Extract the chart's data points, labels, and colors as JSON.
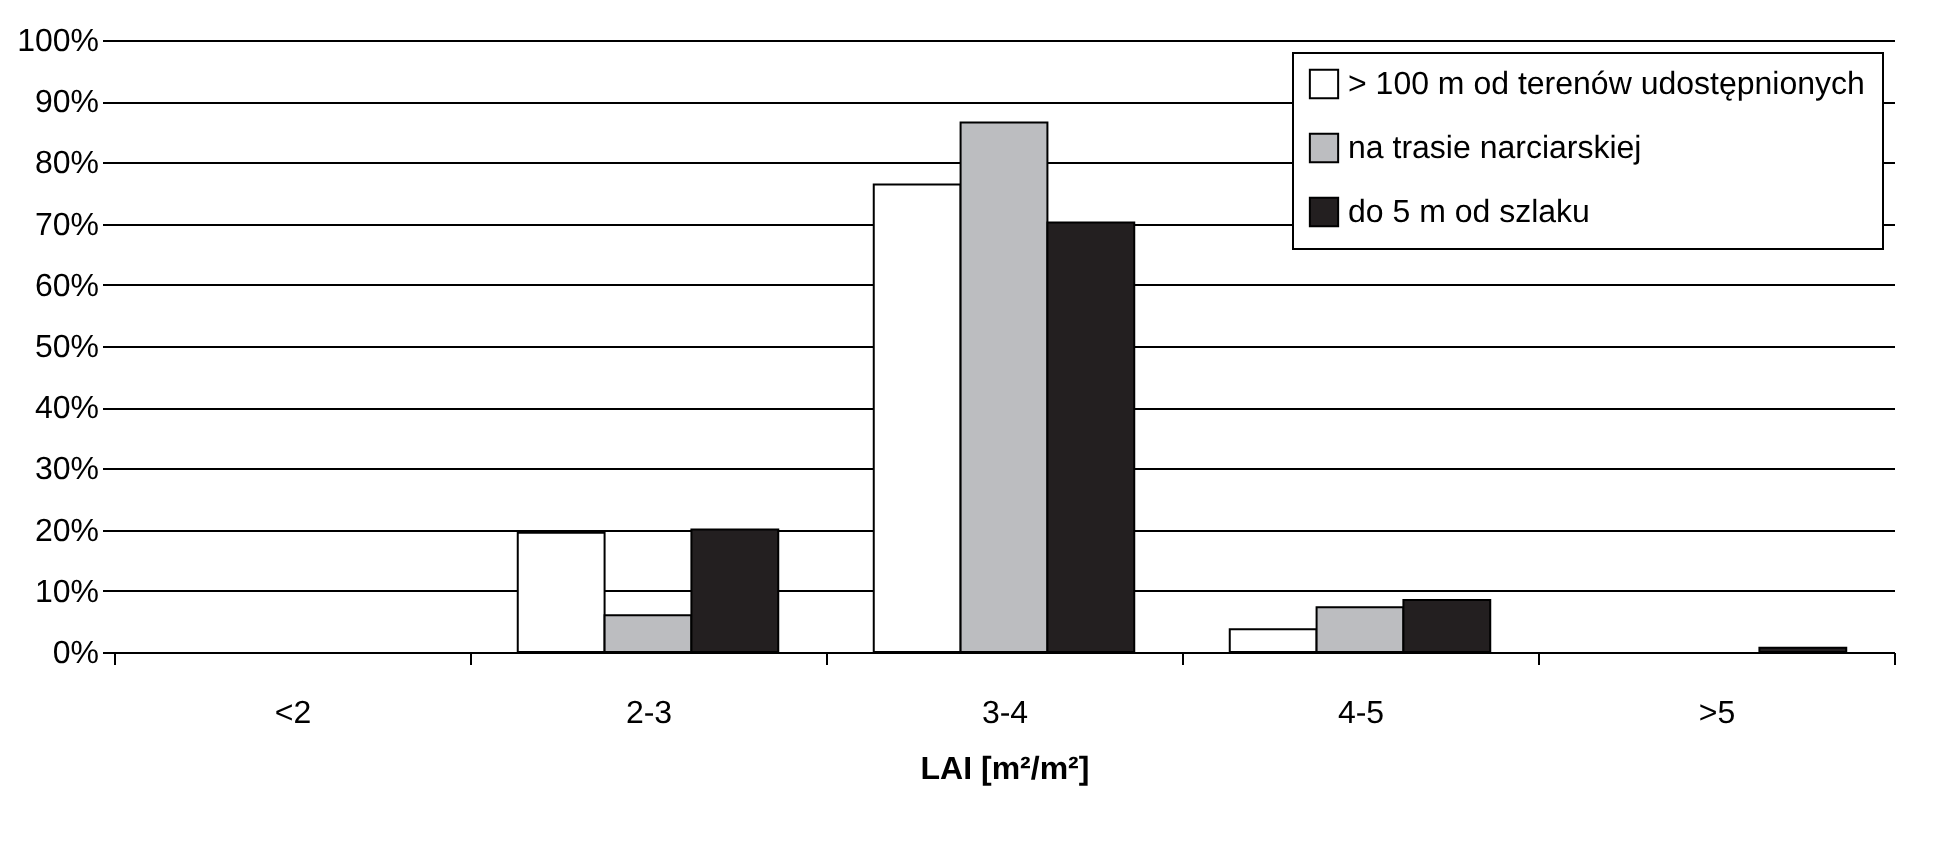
{
  "chart_data": {
    "type": "bar",
    "xlabel": "LAI [m²/m²]",
    "categories": [
      "<2",
      "2-3",
      "3-4",
      "4-5",
      ">5"
    ],
    "series": [
      {
        "name": "> 100 m od terenów udostępnionych",
        "color": "#ffffff",
        "values": [
          0,
          19.5,
          76.4,
          3.7,
          0
        ]
      },
      {
        "name": "na trasie narciarskiej",
        "color": "#bcbdc0",
        "values": [
          0,
          6,
          86.5,
          7.3,
          0
        ]
      },
      {
        "name": "do 5 m od szlaku",
        "color": "#231f20",
        "values": [
          0,
          20,
          70.2,
          8.5,
          0.7
        ]
      }
    ],
    "ylim": [
      0,
      100
    ],
    "yticks": [
      {
        "value": 0,
        "label": "0%"
      },
      {
        "value": 10,
        "label": "10%"
      },
      {
        "value": 20,
        "label": "20%"
      },
      {
        "value": 30,
        "label": "30%"
      },
      {
        "value": 40,
        "label": "40%"
      },
      {
        "value": 50,
        "label": "50%"
      },
      {
        "value": 60,
        "label": "60%"
      },
      {
        "value": 70,
        "label": "70%"
      },
      {
        "value": 80,
        "label": "80%"
      },
      {
        "value": 90,
        "label": "90%"
      },
      {
        "value": 100,
        "label": "100%"
      }
    ],
    "grid": "y",
    "legend": "top right"
  }
}
